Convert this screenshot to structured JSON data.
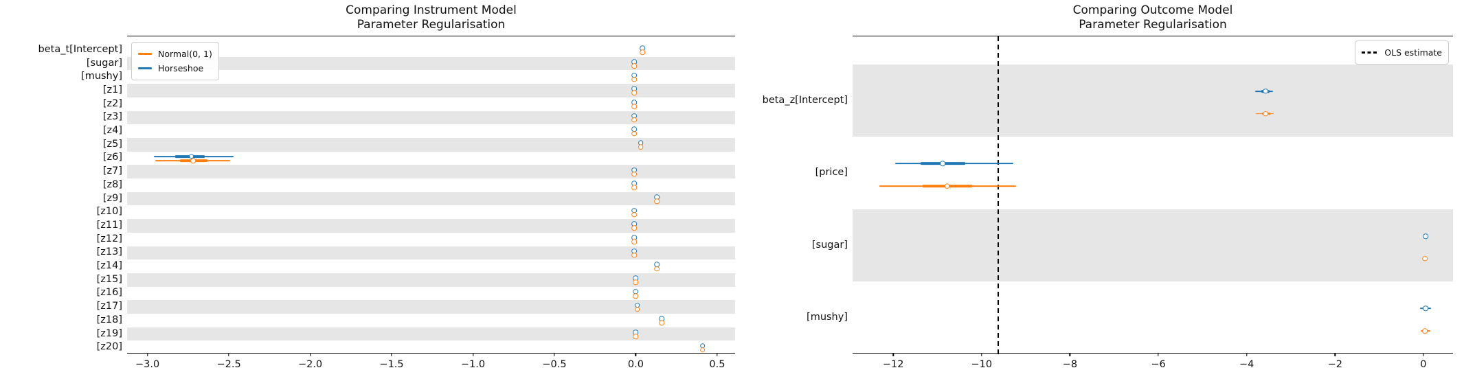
{
  "figure": {
    "background": "#ffffff",
    "band_color": "#e6e6e6",
    "text_color": "#111111"
  },
  "chart_data": [
    {
      "type": "scatter",
      "subtype": "forest-plot",
      "title_lines": [
        "Comparing Instrument Model",
        "Parameter Regularisation"
      ],
      "legend_position": "upper left",
      "legend": [
        {
          "label": "Normal(0, 1)",
          "color": "#ff7f0e",
          "style": "solid"
        },
        {
          "label": "Horseshoe",
          "color": "#1f77b4",
          "style": "solid"
        }
      ],
      "xlim": [
        -3.125,
        0.61
      ],
      "x_ticks": [
        {
          "v": -3.0,
          "label": "−3.0"
        },
        {
          "v": -2.5,
          "label": "−2.5"
        },
        {
          "v": -2.0,
          "label": "−2.0"
        },
        {
          "v": -1.5,
          "label": "−1.5"
        },
        {
          "v": -1.0,
          "label": "−1.0"
        },
        {
          "v": -0.5,
          "label": "−0.5"
        },
        {
          "v": 0.0,
          "label": "0.0"
        },
        {
          "v": 0.5,
          "label": "0.5"
        }
      ],
      "categories": [
        "beta_t[Intercept]",
        "[sugar]",
        "[mushy]",
        "[z1]",
        "[z2]",
        "[z3]",
        "[z4]",
        "[z5]",
        "[z6]",
        "[z7]",
        "[z8]",
        "[z9]",
        "[z10]",
        "[z11]",
        "[z12]",
        "[z13]",
        "[z14]",
        "[z15]",
        "[z16]",
        "[z17]",
        "[z18]",
        "[z19]",
        "[z20]"
      ],
      "band_shade_parity": 1,
      "point_format": "[mean, ci94_lo, ci94_hi, ci50_lo, ci50_hi]",
      "series": [
        {
          "name": "Horseshoe",
          "color": "#1f77b4",
          "points": [
            [
              0.04
            ],
            [
              -0.01
            ],
            [
              -0.01
            ],
            [
              -0.01
            ],
            [
              -0.01
            ],
            [
              -0.01
            ],
            [
              -0.01
            ],
            [
              0.03
            ],
            [
              -2.73,
              -2.96,
              -2.47,
              -2.83,
              -2.65
            ],
            [
              -0.01
            ],
            [
              -0.01
            ],
            [
              0.13
            ],
            [
              -0.01
            ],
            [
              -0.01
            ],
            [
              -0.01
            ],
            [
              -0.01
            ],
            [
              0.13
            ],
            [
              0.0
            ],
            [
              0.0
            ],
            [
              0.01
            ],
            [
              0.16
            ],
            [
              0.0
            ],
            [
              0.41
            ]
          ]
        },
        {
          "name": "Normal(0, 1)",
          "color": "#ff7f0e",
          "points": [
            [
              0.04
            ],
            [
              -0.01
            ],
            [
              -0.01
            ],
            [
              -0.01
            ],
            [
              -0.01
            ],
            [
              -0.01
            ],
            [
              -0.01
            ],
            [
              0.03
            ],
            [
              -2.72,
              -2.95,
              -2.49,
              -2.8,
              -2.63
            ],
            [
              -0.01
            ],
            [
              -0.01
            ],
            [
              0.13
            ],
            [
              -0.01
            ],
            [
              -0.01
            ],
            [
              -0.01
            ],
            [
              -0.01
            ],
            [
              0.13
            ],
            [
              0.0
            ],
            [
              0.0
            ],
            [
              0.01
            ],
            [
              0.16
            ],
            [
              0.0
            ],
            [
              0.41
            ]
          ]
        }
      ]
    },
    {
      "type": "scatter",
      "subtype": "forest-plot",
      "title_lines": [
        "Comparing Outcome Model",
        "Parameter Regularisation"
      ],
      "legend_position": "upper right",
      "legend": [
        {
          "label": "OLS estimate",
          "color": "#000000",
          "style": "dashed"
        }
      ],
      "ols_line": {
        "x": -9.63,
        "color": "#000000",
        "style": "dashed"
      },
      "xlim": [
        -12.92,
        0.67
      ],
      "x_ticks": [
        {
          "v": -12,
          "label": "−12"
        },
        {
          "v": -10,
          "label": "−10"
        },
        {
          "v": -8,
          "label": "−8"
        },
        {
          "v": -6,
          "label": "−6"
        },
        {
          "v": -4,
          "label": "−4"
        },
        {
          "v": -2,
          "label": "−2"
        },
        {
          "v": 0,
          "label": "0"
        }
      ],
      "categories": [
        "beta_z[Intercept]",
        "[price]",
        "[sugar]",
        "[mushy]"
      ],
      "band_shade_parity": 0,
      "point_format": "[mean, ci94_lo, ci94_hi, ci50_lo, ci50_hi]",
      "series": [
        {
          "name": "Horseshoe",
          "color": "#1f77b4",
          "points": [
            [
              -3.57,
              -3.81,
              -3.4,
              -3.67,
              -3.48
            ],
            [
              -10.88,
              -11.96,
              -9.28,
              -11.38,
              -10.37
            ],
            [
              0.05
            ],
            [
              0.05,
              -0.07,
              0.17
            ]
          ]
        },
        {
          "name": "Normal(0, 1)",
          "color": "#ff7f0e",
          "points": [
            [
              -3.57,
              -3.79,
              -3.39,
              -3.66,
              -3.47
            ],
            [
              -10.78,
              -12.31,
              -9.22,
              -11.33,
              -10.22
            ],
            [
              0.04
            ],
            [
              0.04,
              -0.06,
              0.15
            ]
          ]
        }
      ]
    }
  ]
}
